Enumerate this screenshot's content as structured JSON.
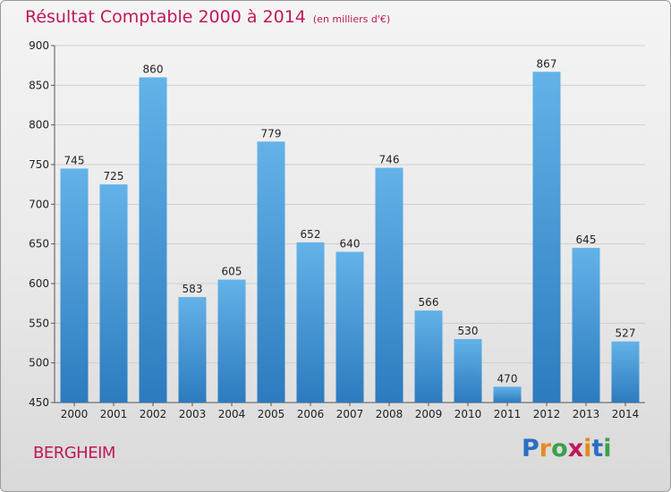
{
  "title": "Résultat Comptable 2000 à 2014",
  "unit": "(en milliers d'€)",
  "commune": "BERGHEIM",
  "logo": {
    "text": "Proxiti",
    "letters": [
      "P",
      "r",
      "o",
      "x",
      "i",
      "t",
      "i"
    ],
    "colors": [
      "#2a6fc2",
      "#e58a1f",
      "#3aa14a",
      "#c0175a",
      "#e58a1f",
      "#2a6fc2",
      "#3aa14a"
    ]
  },
  "colors": {
    "accent": "#c0175a",
    "bar_top": "#63b2e8",
    "bar_bottom": "#2c7bbf"
  },
  "chart_data": {
    "type": "bar",
    "title": "Résultat Comptable 2000 à 2014",
    "xlabel": "",
    "ylabel": "",
    "categories": [
      "2000",
      "2001",
      "2002",
      "2003",
      "2004",
      "2005",
      "2006",
      "2007",
      "2008",
      "2009",
      "2010",
      "2011",
      "2012",
      "2013",
      "2014"
    ],
    "values": [
      745,
      725,
      860,
      583,
      605,
      779,
      652,
      640,
      746,
      566,
      530,
      470,
      867,
      645,
      527
    ],
    "ylim": [
      450,
      900
    ],
    "yticks": [
      450,
      500,
      550,
      600,
      650,
      700,
      750,
      800,
      850,
      900
    ],
    "grid": true,
    "legend": "none"
  }
}
